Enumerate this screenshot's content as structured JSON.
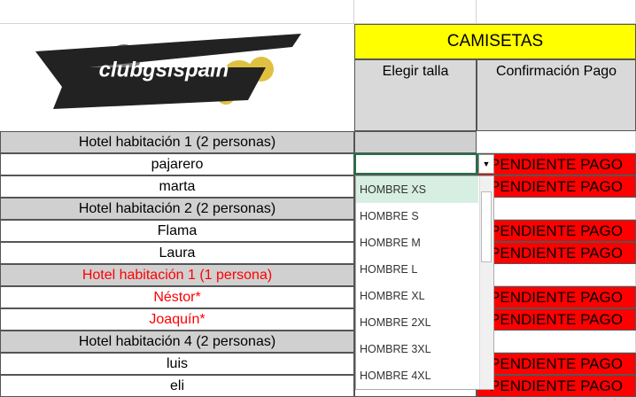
{
  "header": {
    "logo": "clubgsispain",
    "section": "CAMISETAS",
    "columns": [
      "Elegir talla",
      "Confirmación Pago"
    ]
  },
  "groups": [
    {
      "title": "Hotel habitación 1 (2 personas)",
      "members": [
        {
          "name": "pajarero",
          "payment": "PENDIENTE PAGO"
        },
        {
          "name": "marta",
          "payment": "PENDIENTE PAGO"
        }
      ]
    },
    {
      "title": "Hotel habitación 2 (2 personas)",
      "members": [
        {
          "name": "Flama",
          "payment": "PENDIENTE PAGO"
        },
        {
          "name": "Laura",
          "payment": "PENDIENTE PAGO"
        }
      ]
    },
    {
      "title": "Hotel habitación 1 (1 persona)",
      "color": "#ff0000",
      "members": [
        {
          "name": "Néstor*",
          "payment": "PENDIENTE PAGO"
        },
        {
          "name": "Joaquín*",
          "payment": "PENDIENTE PAGO"
        }
      ]
    },
    {
      "title": "Hotel habitación 4 (2 personas)",
      "members": [
        {
          "name": "luis",
          "payment": "PENDIENTE PAGO"
        },
        {
          "name": "eli",
          "payment": "PENDIENTE PAGO"
        }
      ]
    }
  ],
  "dropdown": {
    "options": [
      "HOMBRE XS",
      "HOMBRE S",
      "HOMBRE M",
      "HOMBRE L",
      "HOMBRE XL",
      "HOMBRE 2XL",
      "HOMBRE 3XL",
      "HOMBRE 4XL"
    ]
  }
}
